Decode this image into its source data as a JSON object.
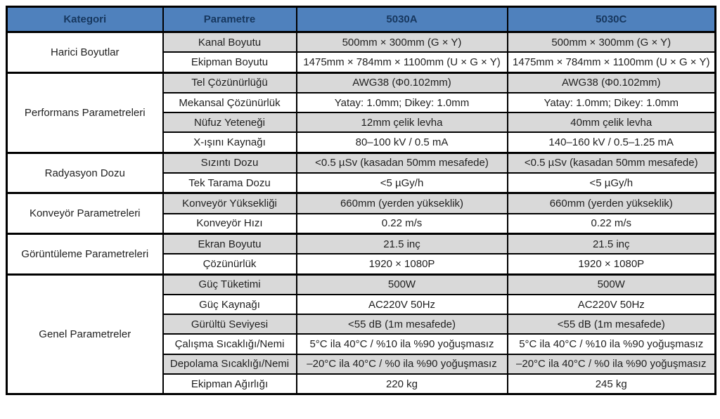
{
  "table": {
    "header": [
      "Kategori",
      "Parametre",
      "5030A",
      "5030C"
    ],
    "groups": [
      {
        "category": "Harici Boyutlar",
        "rows": [
          {
            "param": "Kanal Boyutu",
            "a": "500mm × 300mm (G × Y)",
            "c": "500mm × 300mm (G × Y)"
          },
          {
            "param": "Ekipman Boyutu",
            "a": "1475mm × 784mm × 1100mm (U × G × Y)",
            "c": "1475mm × 784mm × 1100mm (U × G × Y)"
          }
        ]
      },
      {
        "category": "Performans Parametreleri",
        "rows": [
          {
            "param": "Tel Çözünürlüğü",
            "a": "AWG38 (Φ0.102mm)",
            "c": "AWG38 (Φ0.102mm)"
          },
          {
            "param": "Mekansal Çözünürlük",
            "a": "Yatay: 1.0mm; Dikey: 1.0mm",
            "c": "Yatay: 1.0mm; Dikey: 1.0mm"
          },
          {
            "param": "Nüfuz Yeteneği",
            "a": "12mm çelik levha",
            "c": "40mm çelik levha"
          },
          {
            "param": "X-ışını Kaynağı",
            "a": "80–100 kV / 0.5 mA",
            "c": "140–160 kV / 0.5–1.25 mA"
          }
        ]
      },
      {
        "category": "Radyasyon Dozu",
        "rows": [
          {
            "param": "Sızıntı Dozu",
            "a": "<0.5 µSv (kasadan 50mm mesafede)",
            "c": "<0.5 µSv (kasadan 50mm mesafede)"
          },
          {
            "param": "Tek Tarama Dozu",
            "a": "<5 µGy/h",
            "c": "<5 µGy/h"
          }
        ]
      },
      {
        "category": "Konveyör Parametreleri",
        "rows": [
          {
            "param": "Konveyör Yüksekliği",
            "a": "660mm (yerden yükseklik)",
            "c": "660mm (yerden yükseklik)"
          },
          {
            "param": "Konveyör Hızı",
            "a": "0.22 m/s",
            "c": "0.22 m/s"
          }
        ]
      },
      {
        "category": "Görüntüleme Parametreleri",
        "rows": [
          {
            "param": "Ekran Boyutu",
            "a": "21.5 inç",
            "c": "21.5 inç"
          },
          {
            "param": "Çözünürlük",
            "a": "1920 × 1080P",
            "c": "1920 × 1080P"
          }
        ]
      },
      {
        "category": "Genel Parametreler",
        "rows": [
          {
            "param": "Güç Tüketimi",
            "a": "500W",
            "c": "500W"
          },
          {
            "param": "Güç Kaynağı",
            "a": "AC220V 50Hz",
            "c": "AC220V 50Hz"
          },
          {
            "param": "Gürültü Seviyesi",
            "a": "<55 dB (1m mesafede)",
            "c": "<55 dB (1m mesafede)"
          },
          {
            "param": "Çalışma Sıcaklığı/Nemi",
            "a": "5°C ila 40°C / %10 ila %90 yoğuşmasız",
            "c": "5°C ila 40°C / %10 ila %90 yoğuşmasız"
          },
          {
            "param": "Depolama Sıcaklığı/Nemi",
            "a": "–20°C ila 40°C / %0 ila %90 yoğuşmasız",
            "c": "–20°C ila 40°C / %0 ila %90 yoğuşmasız"
          },
          {
            "param": "Ekipman Ağırlığı",
            "a": "220 kg",
            "c": "245 kg"
          }
        ]
      }
    ]
  },
  "colors": {
    "header_bg": "#4F81BD",
    "header_text": "#17375E",
    "row_gray": "#D9D9D9",
    "row_white": "#FFFFFF",
    "border": "#000000"
  }
}
